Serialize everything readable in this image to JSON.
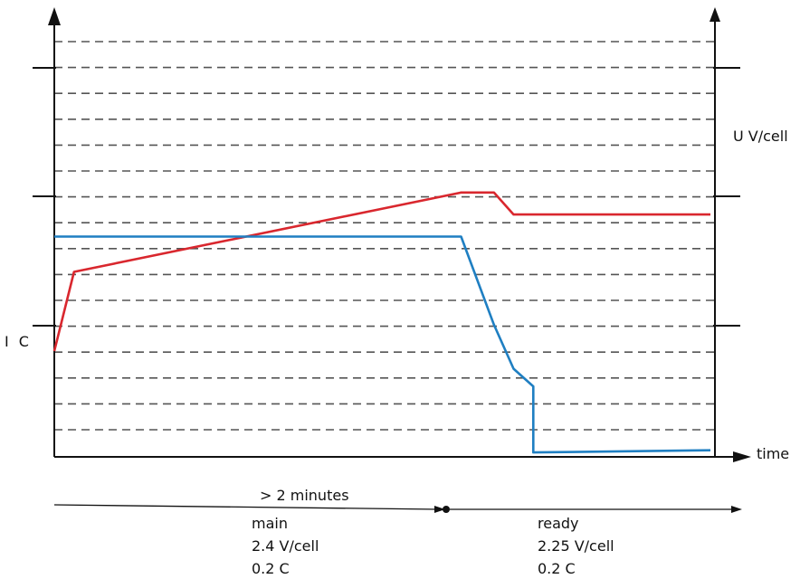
{
  "chart_data": {
    "type": "line",
    "x_axis_label": "time",
    "left_axis_label": "I C",
    "right_axis_label": "U V/cell",
    "grid": "dashed horizontal",
    "series": [
      {
        "axis": "right",
        "color": "#d9272e",
        "points": [
          [
            0,
            0.24
          ],
          [
            0.03,
            0.42
          ],
          [
            0.62,
            0.6
          ],
          [
            0.67,
            0.6
          ],
          [
            0.7,
            0.55
          ],
          [
            1.0,
            0.55
          ]
        ]
      },
      {
        "axis": "left",
        "color": "#1f7fc2",
        "points": [
          [
            0,
            0.5
          ],
          [
            0.62,
            0.5
          ],
          [
            0.67,
            0.3
          ],
          [
            0.7,
            0.2
          ],
          [
            0.73,
            0.16
          ],
          [
            0.73,
            0.01
          ],
          [
            1.0,
            0.015
          ]
        ]
      }
    ]
  },
  "phases": {
    "duration_label": "> 2 minutes",
    "main": {
      "name": "main",
      "voltage": "2.4 V/cell",
      "current": "0.2 C"
    },
    "ready": {
      "name": "ready",
      "voltage": "2.25 V/cell",
      "current": "0.2 C"
    }
  }
}
